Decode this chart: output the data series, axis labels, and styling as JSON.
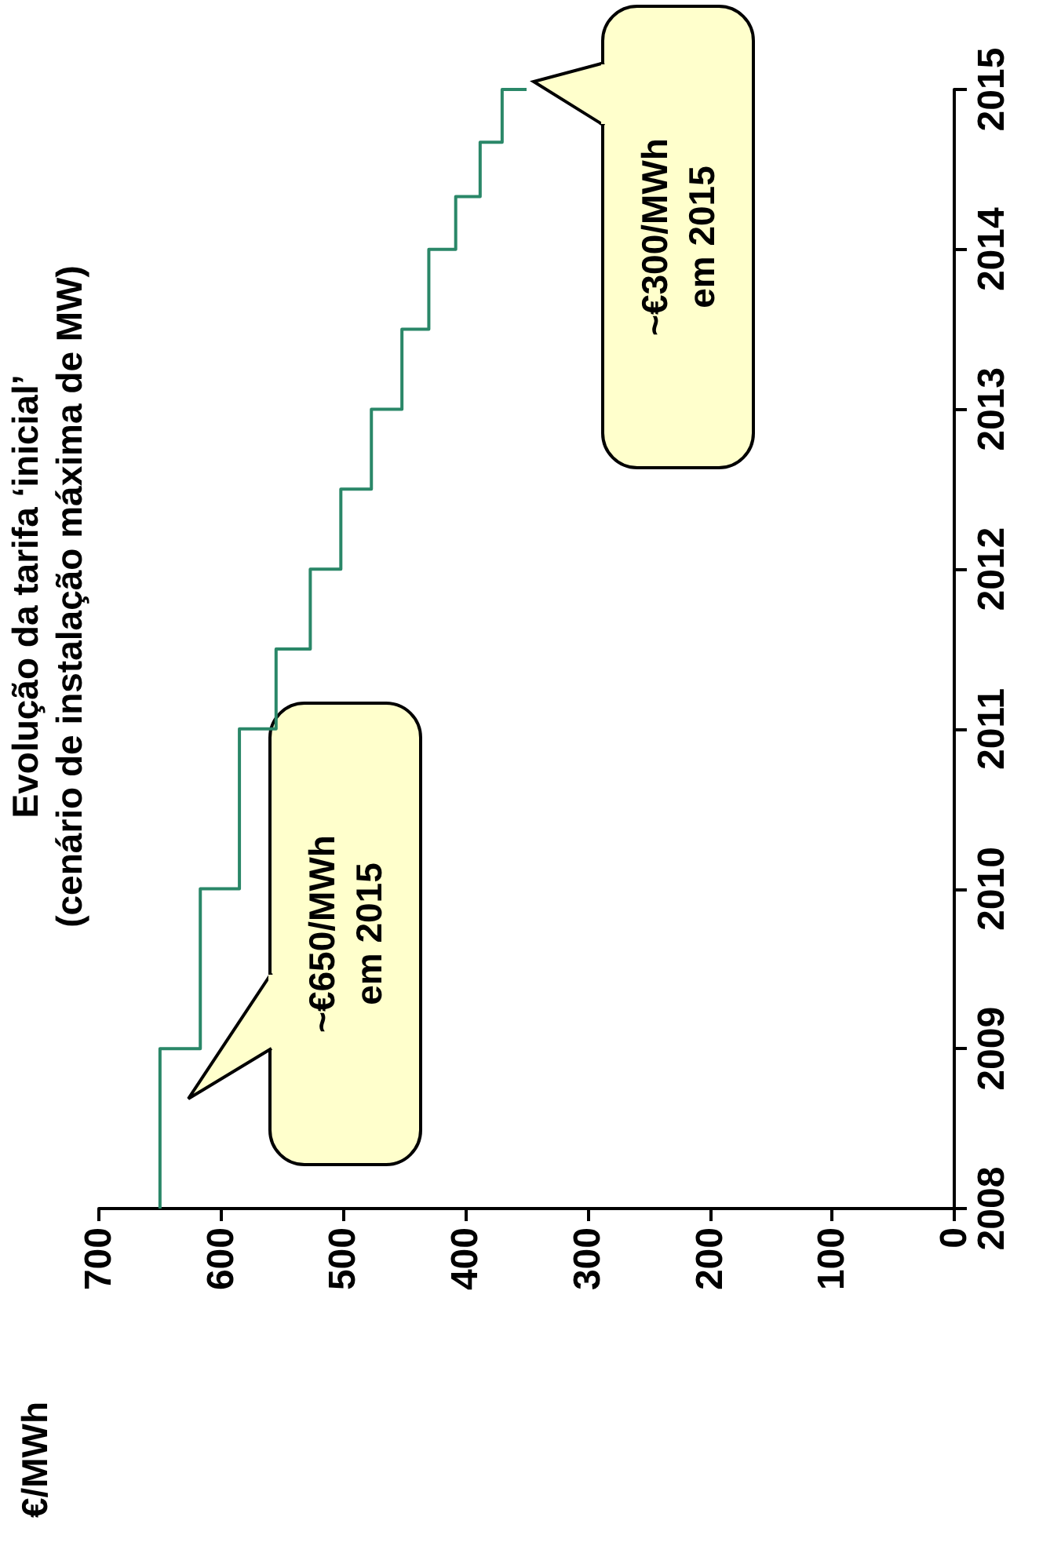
{
  "chart_data": {
    "type": "line",
    "title": "Evolução da tarifa ‘inicial’",
    "subtitle": "(cenário de instalação máxima de MW)",
    "x": [
      650,
      650,
      617,
      617,
      585,
      585,
      555,
      555,
      527,
      527,
      502,
      502,
      477,
      477,
      452,
      452,
      430,
      430,
      408,
      408,
      388,
      388,
      370,
      370,
      350
    ],
    "series": [
      {
        "color": "#2a8768",
        "values": [
          2008,
          2009,
          2009,
          2010,
          2010,
          2011,
          2011,
          2011.5,
          2011.5,
          2012,
          2012,
          2012.5,
          2012.5,
          2013,
          2013,
          2013.5,
          2013.5,
          2014,
          2014,
          2014.33,
          2014.33,
          2014.67,
          2014.67,
          2015,
          2015
        ]
      }
    ],
    "xlim": [
      700,
      0
    ],
    "xticks": [
      700,
      600,
      500,
      400,
      300,
      200,
      100,
      0
    ],
    "ylim": [
      2008,
      2015
    ],
    "yticks": [
      2008,
      2009,
      2010,
      2011,
      2012,
      2013,
      2014,
      2015
    ],
    "annotations": [
      "~€650/MWh\nem 2015",
      "~€300/MWh\nem 2015",
      "€/MWh"
    ],
    "grid": false,
    "marker": "none",
    "line_style": "solid"
  }
}
